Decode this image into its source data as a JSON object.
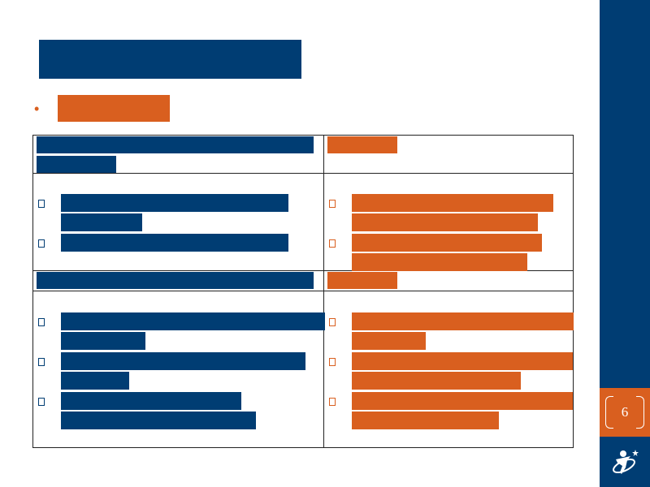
{
  "slide": {
    "page_number": "6"
  },
  "colors": {
    "primary": "#003d73",
    "accent": "#d95f1f"
  },
  "icons": {
    "bullet": "disc-bullet-icon",
    "list_marker": "box-bullet-icon",
    "logo": "figure-with-star-logo-icon"
  }
}
